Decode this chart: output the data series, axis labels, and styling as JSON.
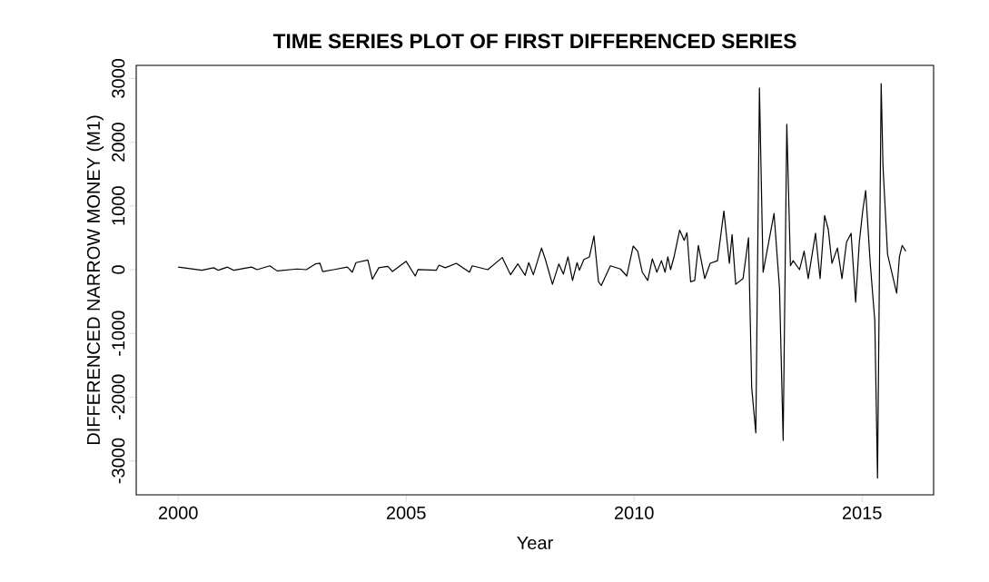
{
  "chart_data": {
    "type": "line",
    "title": "TIME SERIES PLOT OF FIRST DIFFERENCED SERIES",
    "xlabel": "Year",
    "ylabel": "DIFFERENCED NARROW MONEY (M1)",
    "x": [
      2000.0,
      2000.52,
      2000.78,
      2000.88,
      2001.08,
      2001.22,
      2001.61,
      2001.73,
      2002.01,
      2002.17,
      2002.61,
      2002.81,
      2003.01,
      2003.11,
      2003.17,
      2003.41,
      2003.71,
      2003.82,
      2003.9,
      2004.16,
      2004.26,
      2004.4,
      2004.6,
      2004.7,
      2005.0,
      2005.2,
      2005.26,
      2005.66,
      2005.72,
      2005.86,
      2006.1,
      2006.39,
      2006.45,
      2006.79,
      2007.11,
      2007.29,
      2007.45,
      2007.61,
      2007.69,
      2007.79,
      2007.97,
      2008.05,
      2008.21,
      2008.35,
      2008.45,
      2008.55,
      2008.65,
      2008.75,
      2008.8,
      2008.9,
      2009.02,
      2009.12,
      2009.22,
      2009.28,
      2009.48,
      2009.7,
      2009.84,
      2009.98,
      2010.08,
      2010.18,
      2010.3,
      2010.4,
      2010.5,
      2010.6,
      2010.68,
      2010.74,
      2010.8,
      2010.88,
      2011.0,
      2011.1,
      2011.16,
      2011.24,
      2011.33,
      2011.41,
      2011.55,
      2011.67,
      2011.83,
      2011.97,
      2012.09,
      2012.15,
      2012.23,
      2012.39,
      2012.51,
      2012.58,
      2012.67,
      2012.75,
      2012.83,
      2013.07,
      2013.19,
      2013.27,
      2013.35,
      2013.43,
      2013.49,
      2013.63,
      2013.73,
      2013.82,
      2013.98,
      2014.08,
      2014.18,
      2014.26,
      2014.34,
      2014.46,
      2014.56,
      2014.66,
      2014.76,
      2014.86,
      2014.94,
      2015.02,
      2015.08,
      2015.18,
      2015.28,
      2015.34,
      2015.42,
      2015.46,
      2015.56,
      2015.76,
      2015.82,
      2015.88,
      2015.96
    ],
    "values": [
      40,
      -10,
      30,
      -10,
      40,
      -10,
      40,
      0,
      60,
      -20,
      10,
      0,
      90,
      100,
      -30,
      0,
      40,
      -40,
      110,
      150,
      -150,
      30,
      50,
      -30,
      130,
      -100,
      0,
      -10,
      70,
      30,
      100,
      -40,
      60,
      0,
      190,
      -80,
      90,
      -90,
      110,
      -80,
      340,
      170,
      -230,
      90,
      -70,
      200,
      -170,
      110,
      -10,
      160,
      200,
      530,
      -190,
      -250,
      60,
      10,
      -100,
      370,
      290,
      -40,
      -170,
      170,
      -40,
      140,
      -40,
      200,
      0,
      210,
      620,
      460,
      580,
      -190,
      -170,
      380,
      -140,
      100,
      140,
      920,
      100,
      550,
      -230,
      -140,
      500,
      -1850,
      -2560,
      2850,
      -40,
      880,
      -290,
      -2680,
      2280,
      60,
      140,
      0,
      290,
      -140,
      570,
      -140,
      850,
      630,
      100,
      340,
      -140,
      430,
      570,
      -510,
      430,
      950,
      1240,
      100,
      -800,
      -3270,
      2920,
      1620,
      240,
      -370,
      200,
      380,
      290
    ],
    "color": "#000000",
    "line_style": "solid",
    "xlim": [
      1999.08,
      2016.57
    ],
    "ylim": [
      -3533,
      3205
    ],
    "xticks": [
      2000,
      2005,
      2010,
      2015
    ],
    "yticks": [
      -3000,
      -2000,
      -1000,
      0,
      1000,
      2000,
      3000
    ]
  }
}
